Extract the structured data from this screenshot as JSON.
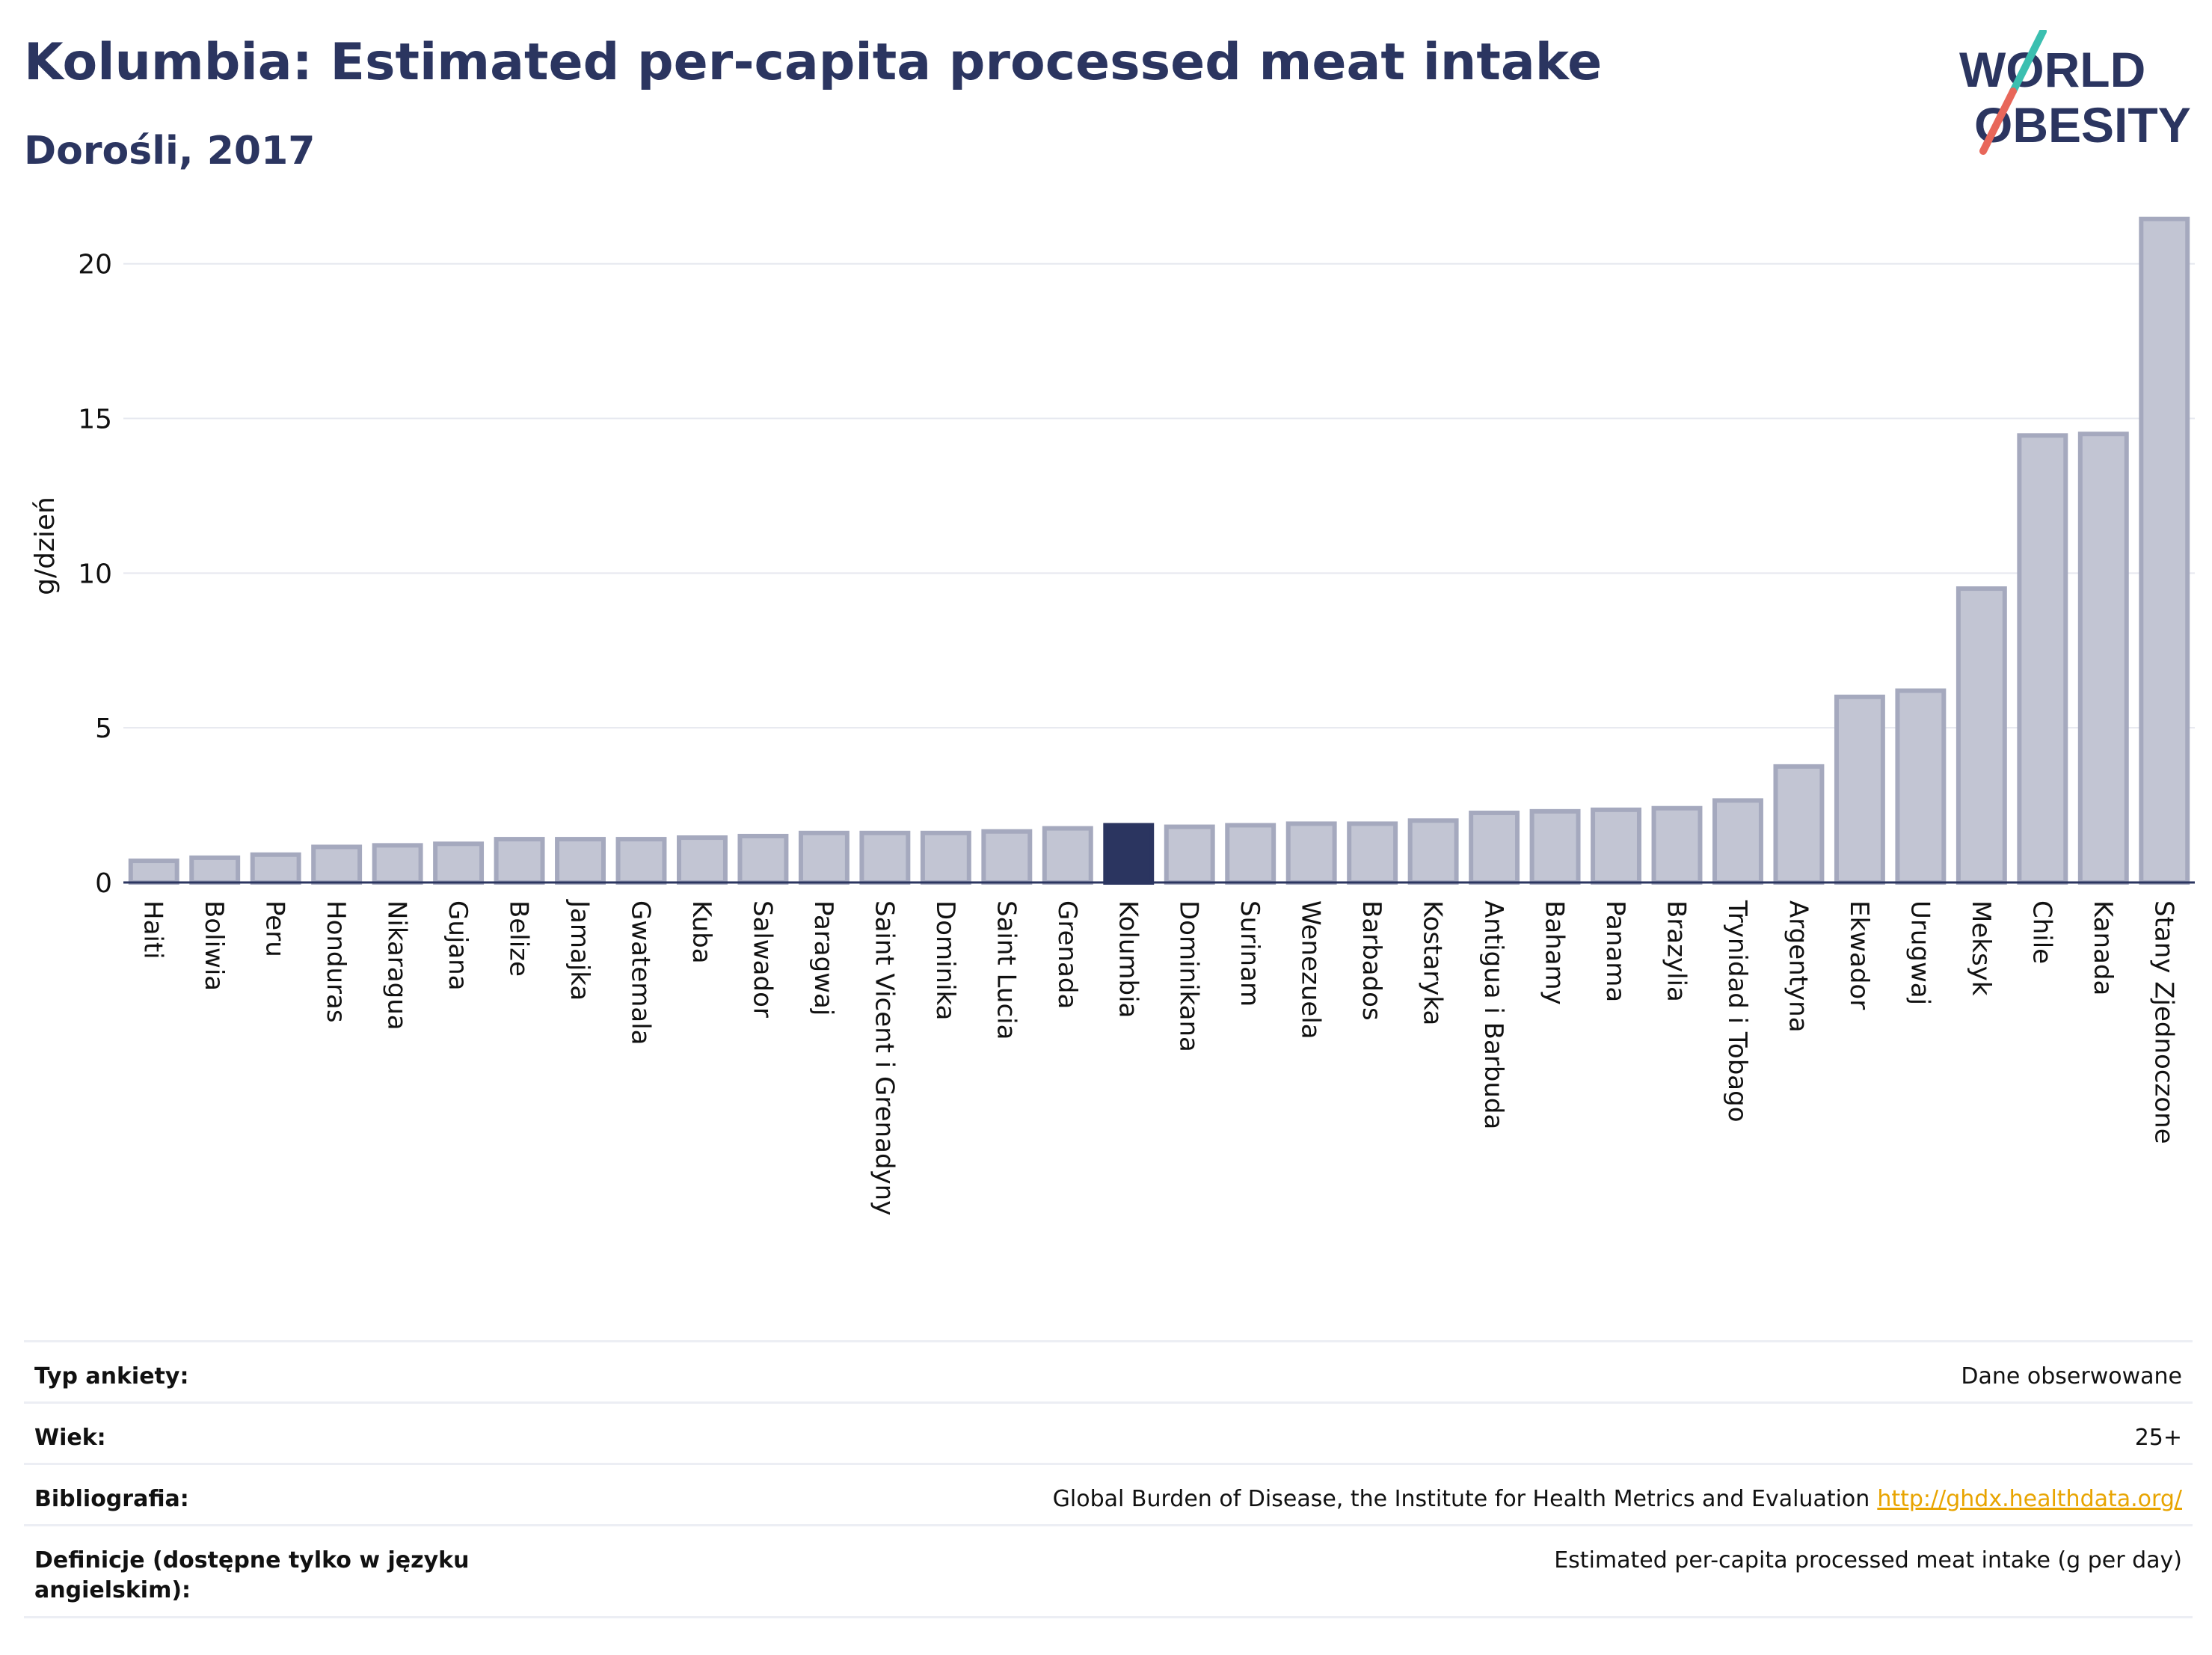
{
  "header": {
    "title": "Kolumbia: Estimated per-capita processed meat intake",
    "subtitle": "Dorośli, 2017"
  },
  "logo": {
    "line1": "WORLD",
    "line2": "OBESITY"
  },
  "colors": {
    "bar_fill": "#c2c5d3",
    "bar_stroke": "#a5a9be",
    "highlight": "#2b3560",
    "grid": "#e6e8ef",
    "axis_text": "#111111",
    "logo_teal": "#3bbfb0",
    "logo_red": "#e8675a"
  },
  "chart_data": {
    "type": "bar",
    "ylabel": "g/dzień",
    "ylim": [
      0,
      22
    ],
    "yticks": [
      0,
      5,
      10,
      15,
      20
    ],
    "grid": true,
    "highlight_category": "Kolumbia",
    "categories": [
      "Haiti",
      "Boliwia",
      "Peru",
      "Honduras",
      "Nikaragua",
      "Gujana",
      "Belize",
      "Jamajka",
      "Gwatemala",
      "Kuba",
      "Salwador",
      "Paragwaj",
      "Saint Vicent i Grenadyny",
      "Dominika",
      "Saint Lucia",
      "Grenada",
      "Kolumbia",
      "Dominikana",
      "Surinam",
      "Wenezuela",
      "Barbados",
      "Kostaryka",
      "Antigua i Barbuda",
      "Bahamy",
      "Panama",
      "Brazylia",
      "Trynidad i Tobago",
      "Argentyna",
      "Ekwador",
      "Urugwaj",
      "Meksyk",
      "Chile",
      "Kanada",
      "Stany Zjednoczone"
    ],
    "values": [
      0.7,
      0.8,
      0.9,
      1.15,
      1.2,
      1.25,
      1.4,
      1.4,
      1.4,
      1.45,
      1.5,
      1.6,
      1.6,
      1.6,
      1.65,
      1.75,
      1.85,
      1.8,
      1.85,
      1.9,
      1.9,
      2.0,
      2.25,
      2.3,
      2.35,
      2.4,
      2.65,
      3.75,
      6.0,
      6.2,
      9.5,
      14.45,
      14.5,
      21.45
    ]
  },
  "meta": {
    "rows": [
      {
        "label": "Typ ankiety:",
        "value": "Dane obserwowane"
      },
      {
        "label": "Wiek:",
        "value": "25+"
      },
      {
        "label": "Bibliografia:",
        "value": "Global Burden of Disease, the Institute for Health Metrics and Evaluation",
        "link": "http://ghdx.healthdata.org/"
      },
      {
        "label": "Definicje (dostępne tylko w języku angielskim):",
        "value": "Estimated per-capita processed meat intake (g per day)"
      }
    ]
  }
}
